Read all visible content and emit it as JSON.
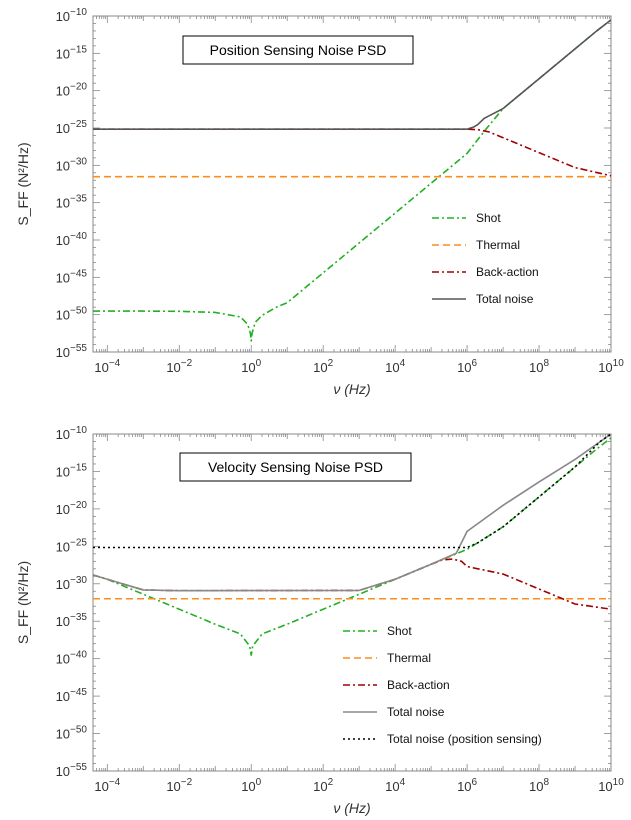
{
  "colors": {
    "shot": "#22b022",
    "thermal": "#ff8c1a",
    "backaction": "#a00000",
    "total_position": "#555555",
    "total_velocity": "#888888",
    "total_position_sensing": "#000000"
  },
  "chart_data": [
    {
      "type": "line",
      "title": "Position Sensing Noise PSD",
      "xlabel": "ν (Hz)",
      "ylabel": "S_FF (N²/Hz)",
      "x_scale": "log",
      "y_scale": "log",
      "xlim": [
        4e-05,
        10000000000
      ],
      "ylim": [
        1e-55,
        1e-10
      ],
      "x_ticks": [
        {
          "value": 0.0001,
          "base": "10",
          "exp": "−4"
        },
        {
          "value": 0.01,
          "base": "10",
          "exp": "−2"
        },
        {
          "value": 1,
          "base": "10",
          "exp": "0"
        },
        {
          "value": 100,
          "base": "10",
          "exp": "2"
        },
        {
          "value": 10000,
          "base": "10",
          "exp": "4"
        },
        {
          "value": 1000000,
          "base": "10",
          "exp": "6"
        },
        {
          "value": 100000000,
          "base": "10",
          "exp": "8"
        },
        {
          "value": 10000000000,
          "base": "10",
          "exp": "10"
        }
      ],
      "y_ticks": [
        {
          "value": 1e-10,
          "base": "10",
          "exp": "−10"
        },
        {
          "value": 1e-15,
          "base": "10",
          "exp": "−15"
        },
        {
          "value": 1e-20,
          "base": "10",
          "exp": "−20"
        },
        {
          "value": 1e-25,
          "base": "10",
          "exp": "−25"
        },
        {
          "value": 1e-30,
          "base": "10",
          "exp": "−30"
        },
        {
          "value": 1e-35,
          "base": "10",
          "exp": "−35"
        },
        {
          "value": 1e-40,
          "base": "10",
          "exp": "−40"
        },
        {
          "value": 1e-45,
          "base": "10",
          "exp": "−45"
        },
        {
          "value": 1e-50,
          "base": "10",
          "exp": "−50"
        },
        {
          "value": 1e-55,
          "base": "10",
          "exp": "−55"
        }
      ],
      "legend_position": "bottom-right",
      "series": [
        {
          "name": "Shot",
          "color_key": "shot",
          "dash": "dashdot",
          "points": [
            [
              4e-05,
              3e-50
            ],
            [
              0.0001,
              3e-50
            ],
            [
              0.001,
              3e-50
            ],
            [
              0.01,
              2.8e-50
            ],
            [
              0.1,
              2e-50
            ],
            [
              0.5,
              5e-51
            ],
            [
              0.8,
              5e-52
            ],
            [
              0.95,
              3e-53
            ],
            [
              1,
              3e-54
            ],
            [
              1.05,
              3e-53
            ],
            [
              1.3,
              1e-51
            ],
            [
              2,
              8e-51
            ],
            [
              5,
              1e-49
            ],
            [
              10,
              4e-49
            ],
            [
              100,
              4e-45
            ],
            [
              1000,
              4e-41
            ],
            [
              10000,
              4e-37
            ],
            [
              100000,
              4e-33
            ],
            [
              1000000,
              4e-29
            ],
            [
              2000000,
              3e-27
            ],
            [
              4000000,
              2e-25
            ],
            [
              10000000,
              4e-23
            ],
            [
              100000000,
              4e-19
            ],
            [
              1000000000,
              4e-15
            ],
            [
              4000000000,
              1e-12
            ],
            [
              10000000000,
              3e-11
            ]
          ]
        },
        {
          "name": "Thermal",
          "color_key": "thermal",
          "dash": "dash",
          "points": [
            [
              4e-05,
              3e-32
            ],
            [
              10000000000,
              3e-32
            ]
          ]
        },
        {
          "name": "Back-action",
          "color_key": "backaction",
          "dash": "dashdot",
          "points": [
            [
              4e-05,
              7e-26
            ],
            [
              100000,
              7e-26
            ],
            [
              1000000,
              7e-26
            ],
            [
              2000000,
              6e-26
            ],
            [
              4000000,
              3e-26
            ],
            [
              10000000,
              5e-27
            ],
            [
              100000000,
              5e-29
            ],
            [
              1000000000,
              5e-31
            ],
            [
              10000000000,
              4e-32
            ]
          ]
        },
        {
          "name": "Total noise",
          "color_key": "total_position",
          "dash": "solid",
          "points": [
            [
              4e-05,
              7e-26
            ],
            [
              1000000,
              7e-26
            ],
            [
              1500000,
              1.3e-25
            ],
            [
              2000000,
              3e-25
            ],
            [
              3000000,
              2e-24
            ],
            [
              10000000,
              4e-23
            ],
            [
              100000000,
              4e-19
            ],
            [
              1000000000,
              4e-15
            ],
            [
              4000000000,
              1e-12
            ],
            [
              10000000000,
              3e-11
            ]
          ]
        }
      ]
    },
    {
      "type": "line",
      "title": "Velocity Sensing Noise PSD",
      "xlabel": "ν (Hz)",
      "ylabel": "S_FF (N²/Hz)",
      "x_scale": "log",
      "y_scale": "log",
      "xlim": [
        4e-05,
        10000000000
      ],
      "ylim": [
        1e-55,
        1e-10
      ],
      "x_ticks": [
        {
          "value": 0.0001,
          "base": "10",
          "exp": "−4"
        },
        {
          "value": 0.01,
          "base": "10",
          "exp": "−2"
        },
        {
          "value": 1,
          "base": "10",
          "exp": "0"
        },
        {
          "value": 100,
          "base": "10",
          "exp": "2"
        },
        {
          "value": 10000,
          "base": "10",
          "exp": "4"
        },
        {
          "value": 1000000,
          "base": "10",
          "exp": "6"
        },
        {
          "value": 100000000,
          "base": "10",
          "exp": "8"
        },
        {
          "value": 10000000000,
          "base": "10",
          "exp": "10"
        }
      ],
      "y_ticks": [
        {
          "value": 1e-10,
          "base": "10",
          "exp": "−10"
        },
        {
          "value": 1e-15,
          "base": "10",
          "exp": "−15"
        },
        {
          "value": 1e-20,
          "base": "10",
          "exp": "−20"
        },
        {
          "value": 1e-25,
          "base": "10",
          "exp": "−25"
        },
        {
          "value": 1e-30,
          "base": "10",
          "exp": "−30"
        },
        {
          "value": 1e-35,
          "base": "10",
          "exp": "−35"
        },
        {
          "value": 1e-40,
          "base": "10",
          "exp": "−40"
        },
        {
          "value": 1e-45,
          "base": "10",
          "exp": "−45"
        },
        {
          "value": 1e-50,
          "base": "10",
          "exp": "−50"
        },
        {
          "value": 1e-55,
          "base": "10",
          "exp": "−55"
        }
      ],
      "legend_position": "bottom-right",
      "series": [
        {
          "name": "Shot",
          "color_key": "shot",
          "dash": "dashdot",
          "points": [
            [
              4e-05,
              1.5e-29
            ],
            [
              0.0001,
              4e-30
            ],
            [
              0.001,
              4e-32
            ],
            [
              0.01,
              4e-34
            ],
            [
              0.1,
              4e-36
            ],
            [
              0.5,
              2e-37
            ],
            [
              0.9,
              5e-39
            ],
            [
              1,
              3e-40
            ],
            [
              1.1,
              5e-39
            ],
            [
              2,
              2e-37
            ],
            [
              10,
              4e-36
            ],
            [
              100,
              4e-34
            ],
            [
              1000,
              4e-32
            ],
            [
              10000,
              4e-30
            ],
            [
              100000,
              4e-28
            ],
            [
              1000000,
              4e-26
            ],
            [
              10000000,
              4e-23
            ],
            [
              100000000,
              4e-19
            ],
            [
              1000000000,
              4e-15
            ],
            [
              4000000000,
              1e-12
            ],
            [
              10000000000,
              3e-11
            ]
          ]
        },
        {
          "name": "Thermal",
          "color_key": "thermal",
          "dash": "dash",
          "points": [
            [
              4e-05,
              1e-32
            ],
            [
              10000000000,
              1e-32
            ]
          ]
        },
        {
          "name": "Back-action",
          "color_key": "backaction",
          "dash": "dashdot",
          "points": [
            [
              4e-05,
              1.5e-29
            ],
            [
              0.0001,
              4e-30
            ],
            [
              0.001,
              1.5e-31
            ],
            [
              0.01,
              1.2e-31
            ],
            [
              1000,
              1.3e-31
            ],
            [
              10000,
              4e-30
            ],
            [
              100000,
              4e-28
            ],
            [
              200000,
              1.5e-27
            ],
            [
              400000,
              2e-27
            ],
            [
              700000,
              1e-27
            ],
            [
              1000000,
              2e-28
            ],
            [
              10000000,
              2e-29
            ],
            [
              100000000,
              2e-31
            ],
            [
              1000000000,
              2e-33
            ],
            [
              10000000000,
              4e-34
            ]
          ]
        },
        {
          "name": "Total noise",
          "color_key": "total_velocity",
          "dash": "solid",
          "points": [
            [
              4e-05,
              1.5e-29
            ],
            [
              0.0001,
              4e-30
            ],
            [
              0.001,
              1.5e-31
            ],
            [
              0.01,
              1.2e-31
            ],
            [
              1000,
              1.3e-31
            ],
            [
              10000,
              4e-30
            ],
            [
              100000,
              4e-28
            ],
            [
              500000,
              1.2e-26
            ],
            [
              1000000,
              1e-23
            ],
            [
              10000000,
              3e-20
            ],
            [
              100000000,
              4e-17
            ],
            [
              1000000000,
              4e-14
            ],
            [
              10000000000,
              1e-10
            ]
          ]
        },
        {
          "name": "Total noise (position sensing)",
          "color_key": "total_position_sensing",
          "dash": "dot",
          "points": [
            [
              4e-05,
              7e-26
            ],
            [
              1000000,
              7e-26
            ],
            [
              2000000,
              3e-25
            ],
            [
              10000000,
              4e-23
            ],
            [
              100000000,
              4e-19
            ],
            [
              1000000000,
              4e-15
            ],
            [
              5000000000,
              1e-11
            ],
            [
              10000000000,
              1e-10
            ]
          ]
        }
      ]
    }
  ]
}
